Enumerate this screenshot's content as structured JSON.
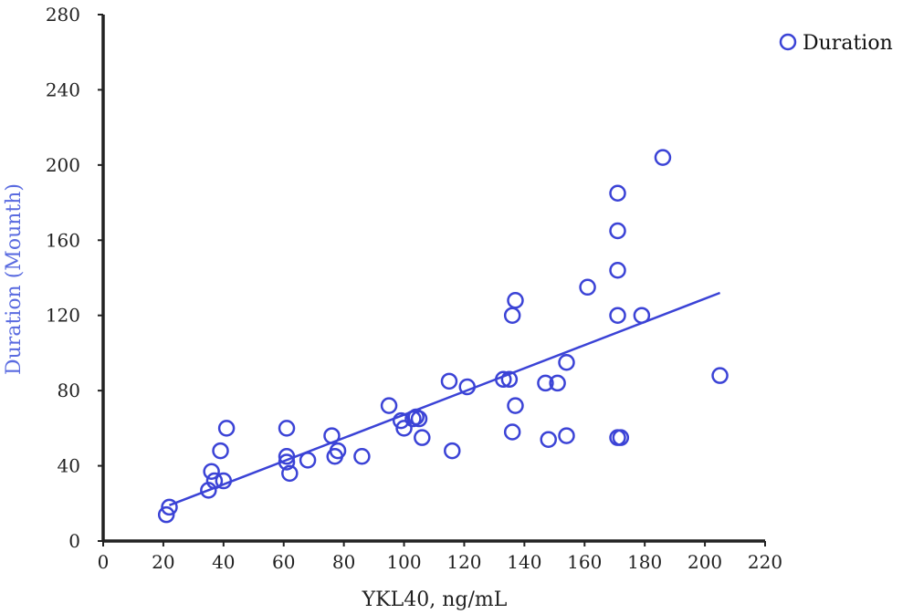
{
  "chart_data": {
    "type": "scatter",
    "xlabel": "YKL40, ng/mL",
    "ylabel": "Duration (Mounth)",
    "xlim": [
      0,
      220
    ],
    "ylim": [
      0,
      280
    ],
    "xticks": [
      "0",
      "20",
      "40",
      "60",
      "80",
      "100",
      "120",
      "140",
      "160",
      "180",
      "200",
      "220"
    ],
    "yticks": [
      "0",
      "40",
      "80",
      "120",
      "160",
      "200",
      "240",
      "280"
    ],
    "legend": {
      "position": "top-right",
      "label": "Duration"
    },
    "colors": {
      "series": "#3b43d6",
      "axis": "#222222",
      "ylabel": "#5a6be0"
    },
    "series": [
      {
        "name": "Duration",
        "points": [
          [
            21,
            14
          ],
          [
            22,
            18
          ],
          [
            35,
            27
          ],
          [
            36,
            37
          ],
          [
            37,
            32
          ],
          [
            39,
            48
          ],
          [
            40,
            32
          ],
          [
            41,
            60
          ],
          [
            61,
            60
          ],
          [
            61,
            45
          ],
          [
            61,
            42
          ],
          [
            62,
            36
          ],
          [
            68,
            43
          ],
          [
            76,
            56
          ],
          [
            77,
            45
          ],
          [
            78,
            48
          ],
          [
            86,
            45
          ],
          [
            95,
            72
          ],
          [
            99,
            64
          ],
          [
            100,
            60
          ],
          [
            103,
            65
          ],
          [
            104,
            66
          ],
          [
            105,
            65
          ],
          [
            106,
            55
          ],
          [
            115,
            85
          ],
          [
            116,
            48
          ],
          [
            121,
            82
          ],
          [
            133,
            86
          ],
          [
            135,
            86
          ],
          [
            136,
            120
          ],
          [
            136,
            58
          ],
          [
            137,
            128
          ],
          [
            137,
            72
          ],
          [
            147,
            84
          ],
          [
            148,
            54
          ],
          [
            151,
            84
          ],
          [
            154,
            95
          ],
          [
            154,
            56
          ],
          [
            161,
            135
          ],
          [
            171,
            185
          ],
          [
            171,
            165
          ],
          [
            171,
            144
          ],
          [
            171,
            120
          ],
          [
            171,
            55
          ],
          [
            172,
            55
          ],
          [
            179,
            120
          ],
          [
            186,
            204
          ],
          [
            205,
            88
          ]
        ],
        "trendline": {
          "x": [
            22,
            205
          ],
          "y": [
            19,
            132
          ]
        }
      }
    ]
  }
}
